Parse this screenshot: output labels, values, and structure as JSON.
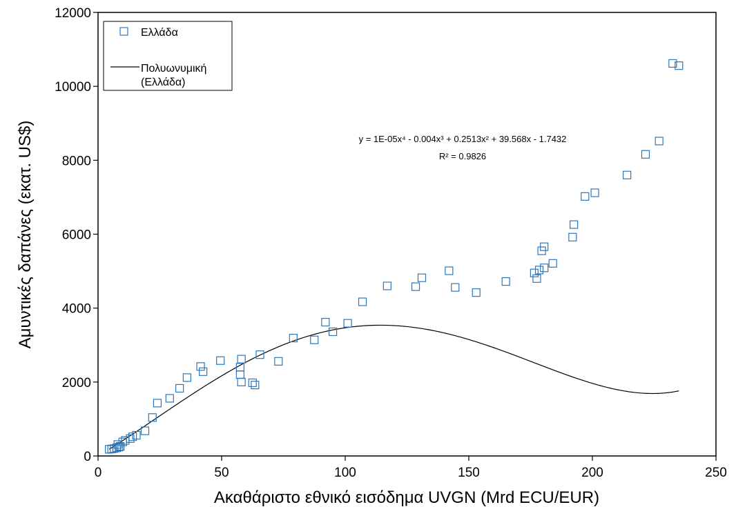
{
  "chart_data": {
    "type": "scatter",
    "xlabel": "Ακαθάριστο εθνικό εισόδημα UVGN (Mrd ECU/EUR)",
    "ylabel": "Αμυντικές δαπάνες (εκατ. US$)",
    "xlim": [
      0,
      250
    ],
    "ylim": [
      0,
      12000
    ],
    "x_ticks": [
      "0",
      "50",
      "100",
      "150",
      "200",
      "250"
    ],
    "y_ticks": [
      "0",
      "2000",
      "4000",
      "6000",
      "8000",
      "10000",
      "12000"
    ],
    "grid": false,
    "legend_position": "top-left",
    "series": [
      {
        "name": "Ελλάδα",
        "kind": "scatter",
        "marker": "square",
        "color": "#2E75B6",
        "points": [
          [
            4.5,
            180
          ],
          [
            5.5,
            190
          ],
          [
            6.5,
            200
          ],
          [
            7.5,
            220
          ],
          [
            8.5,
            240
          ],
          [
            9.0,
            260
          ],
          [
            8.0,
            310
          ],
          [
            10.0,
            380
          ],
          [
            11.0,
            420
          ],
          [
            13.0,
            470
          ],
          [
            14.0,
            520
          ],
          [
            15.5,
            560
          ],
          [
            19.0,
            680
          ],
          [
            22.0,
            1040
          ],
          [
            24.0,
            1430
          ],
          [
            29.0,
            1560
          ],
          [
            33.0,
            1830
          ],
          [
            36.0,
            2120
          ],
          [
            41.5,
            2420
          ],
          [
            42.5,
            2280
          ],
          [
            49.5,
            2580
          ],
          [
            57.5,
            2400
          ],
          [
            57.5,
            2200
          ],
          [
            58.0,
            2000
          ],
          [
            58.0,
            2620
          ],
          [
            62.5,
            1980
          ],
          [
            63.5,
            1920
          ],
          [
            65.5,
            2740
          ],
          [
            73.0,
            2560
          ],
          [
            79.0,
            3190
          ],
          [
            87.5,
            3140
          ],
          [
            92.0,
            3620
          ],
          [
            95.0,
            3360
          ],
          [
            101.0,
            3590
          ],
          [
            107.0,
            4170
          ],
          [
            117.0,
            4600
          ],
          [
            128.5,
            4580
          ],
          [
            131.0,
            4820
          ],
          [
            142.0,
            5010
          ],
          [
            144.5,
            4560
          ],
          [
            153.0,
            4420
          ],
          [
            165.0,
            4720
          ],
          [
            176.5,
            4950
          ],
          [
            177.5,
            4800
          ],
          [
            178.5,
            5030
          ],
          [
            180.5,
            5090
          ],
          [
            179.5,
            5550
          ],
          [
            180.5,
            5660
          ],
          [
            184.0,
            5210
          ],
          [
            192.0,
            5920
          ],
          [
            192.5,
            6260
          ],
          [
            197.0,
            7020
          ],
          [
            201.0,
            7120
          ],
          [
            214.0,
            7600
          ],
          [
            221.5,
            8160
          ],
          [
            227.0,
            8520
          ],
          [
            232.5,
            10620
          ],
          [
            235.0,
            10560
          ]
        ]
      },
      {
        "name": "Πολυωνυμική\n(Ελλάδα)",
        "kind": "trendline",
        "color": "#000000",
        "coefficients": {
          "a4": 1e-05,
          "a3": -0.004,
          "a2": 0.2513,
          "a1": 39.568,
          "a0": -1.7432
        },
        "x_range": [
          4.5,
          235.0
        ]
      }
    ],
    "annotations": {
      "equation": "y = 1E-05x⁴ - 0.004x³ + 0.2513x² + 39.568x - 1.7432",
      "r_squared": "R² = 0.9826"
    },
    "legend": [
      {
        "label": "Ελλάδα",
        "symbol": "square"
      },
      {
        "label_line1": "Πολυωνυμική",
        "label_line2": "(Ελλάδα)",
        "symbol": "line"
      }
    ]
  }
}
